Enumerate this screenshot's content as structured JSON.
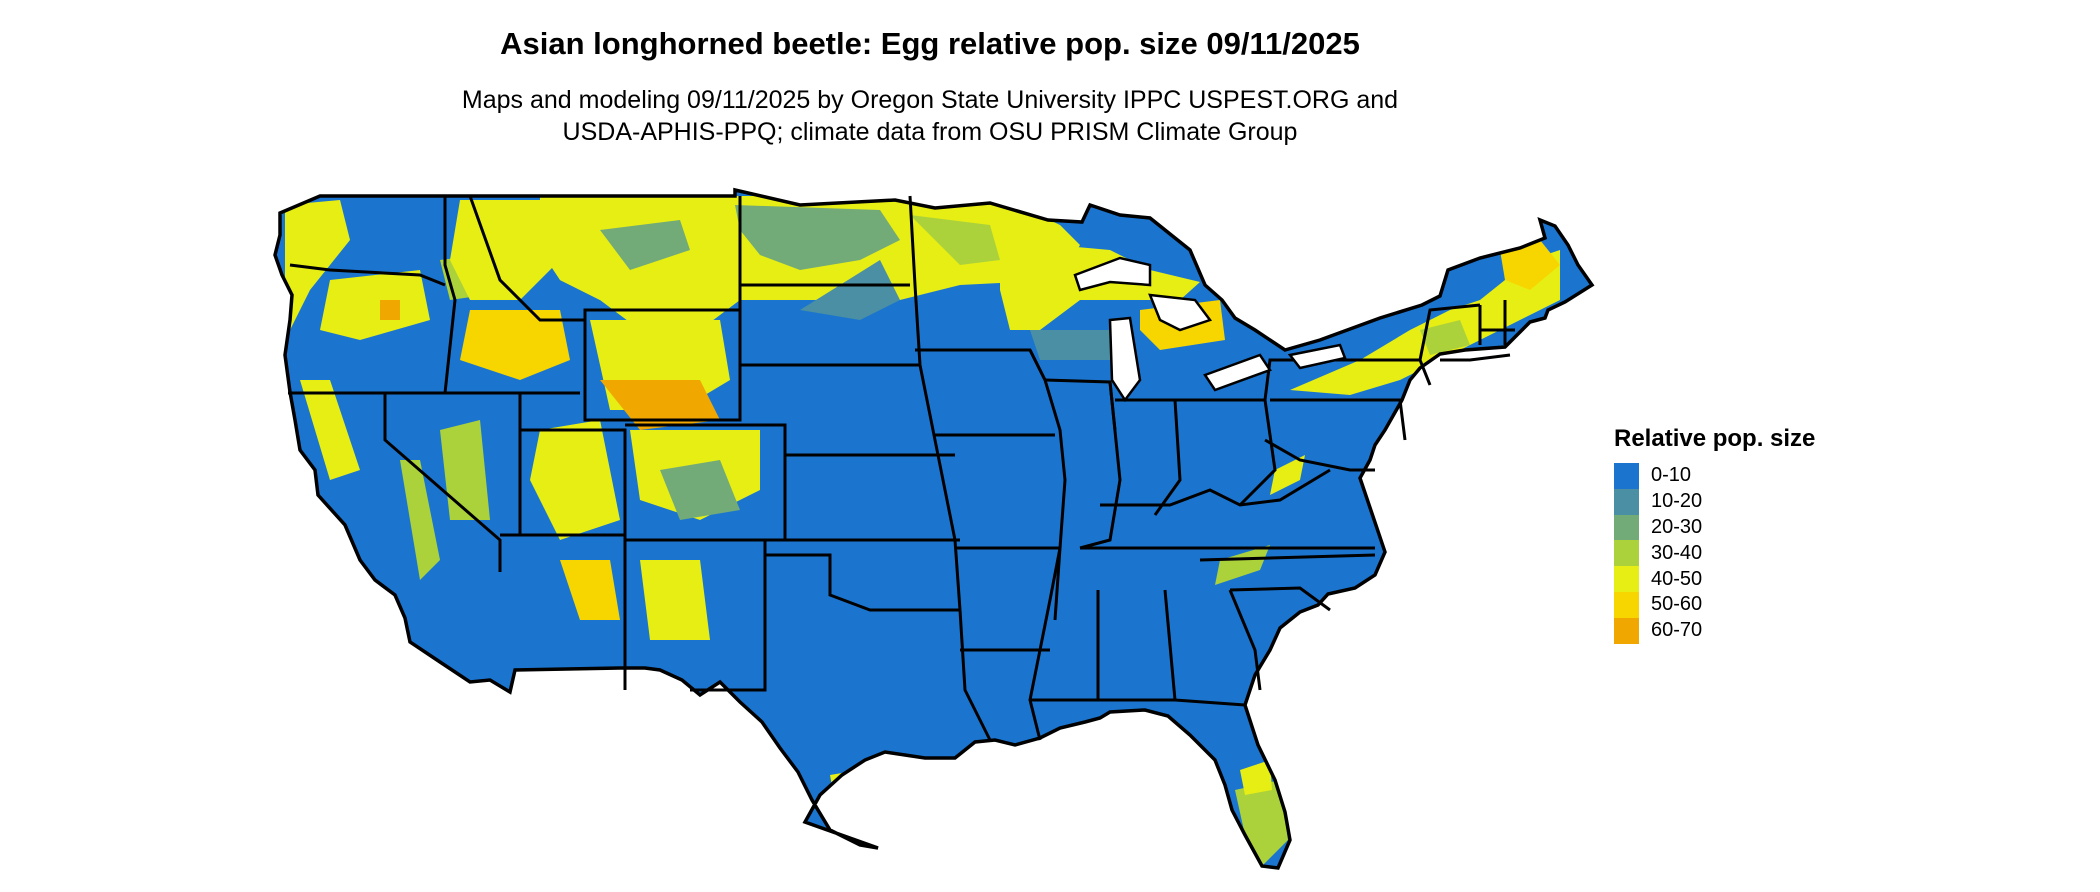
{
  "title": "Asian longhorned beetle: Egg relative pop. size 09/11/2025",
  "subtitle_line1": "Maps and modeling 09/11/2025 by Oregon State University IPPC USPEST.ORG and",
  "subtitle_line2": "USDA-APHIS-PPQ; climate data from OSU PRISM Climate Group",
  "legend": {
    "title": "Relative pop. size",
    "items": [
      {
        "label": "0-10",
        "color": "#1b75cf"
      },
      {
        "label": "10-20",
        "color": "#4a8fa3"
      },
      {
        "label": "20-30",
        "color": "#72aa78"
      },
      {
        "label": "30-40",
        "color": "#acd23b"
      },
      {
        "label": "40-50",
        "color": "#e7ee14"
      },
      {
        "label": "50-60",
        "color": "#f7d600"
      },
      {
        "label": "60-70",
        "color": "#f0a800"
      }
    ]
  },
  "map": {
    "base_color": "#1b75cf",
    "outline_color": "#000000"
  }
}
